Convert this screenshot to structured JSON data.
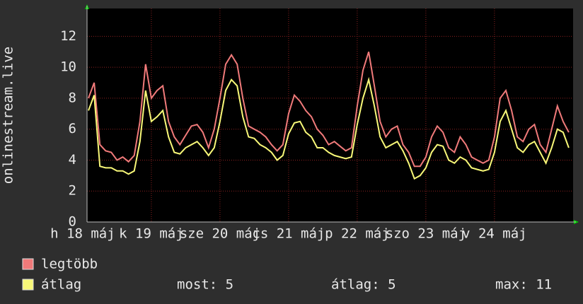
{
  "chart_data": {
    "type": "line",
    "ylabel": "onlinestream.live",
    "x": [
      2,
      4,
      6,
      8,
      10,
      12,
      14,
      16,
      18,
      20,
      22,
      24,
      26,
      28,
      30,
      32,
      34,
      36,
      38,
      40,
      42,
      44,
      46,
      48,
      50,
      52,
      54,
      56,
      58,
      60,
      62,
      64,
      66,
      68,
      70,
      72,
      74,
      76,
      78,
      80,
      82,
      84,
      86,
      88,
      90,
      92,
      94,
      96,
      98,
      100,
      102,
      104,
      106,
      108,
      110,
      112,
      114,
      116,
      118,
      120,
      122,
      124,
      126,
      128,
      130,
      132,
      134,
      136,
      138,
      140,
      142,
      144,
      146,
      148,
      150,
      152,
      154,
      156,
      158,
      160,
      162,
      164,
      166,
      168,
      170
    ],
    "series": [
      {
        "name": "legtöbb",
        "color": "#f07a7a",
        "values": [
          8.0,
          9.0,
          5.0,
          4.6,
          4.5,
          4.0,
          4.2,
          3.9,
          4.3,
          6.5,
          10.2,
          8.0,
          8.5,
          8.8,
          6.5,
          5.5,
          5.0,
          5.6,
          6.2,
          6.3,
          5.8,
          4.8,
          6.0,
          8.0,
          10.2,
          10.8,
          10.2,
          8.0,
          6.2,
          6.0,
          5.8,
          5.5,
          5.0,
          4.6,
          5.0,
          7.0,
          8.2,
          7.8,
          7.2,
          6.8,
          6.0,
          5.6,
          5.0,
          5.2,
          4.9,
          4.6,
          4.8,
          7.5,
          9.8,
          11.0,
          8.8,
          6.5,
          5.5,
          6.0,
          6.2,
          5.0,
          4.5,
          3.6,
          3.6,
          4.2,
          5.5,
          6.2,
          5.8,
          4.8,
          4.5,
          5.5,
          5.0,
          4.2,
          4.0,
          3.8,
          4.0,
          5.5,
          8.0,
          8.5,
          7.2,
          5.5,
          5.2,
          6.0,
          6.3,
          5.0,
          4.5,
          6.0,
          7.5,
          6.5,
          5.8
        ]
      },
      {
        "name": "átlag",
        "color": "#f8f878",
        "values": [
          7.2,
          8.2,
          3.6,
          3.5,
          3.5,
          3.3,
          3.3,
          3.1,
          3.3,
          5.2,
          8.5,
          6.5,
          6.8,
          7.2,
          5.5,
          4.5,
          4.4,
          4.8,
          5.0,
          5.2,
          4.8,
          4.3,
          4.8,
          6.5,
          8.5,
          9.2,
          8.8,
          6.8,
          5.5,
          5.4,
          5.0,
          4.8,
          4.5,
          4.0,
          4.3,
          5.7,
          6.4,
          6.5,
          5.8,
          5.5,
          4.8,
          4.8,
          4.5,
          4.3,
          4.2,
          4.1,
          4.2,
          6.3,
          8.0,
          9.2,
          7.5,
          5.5,
          4.8,
          5.0,
          5.2,
          4.6,
          3.8,
          2.8,
          3.0,
          3.5,
          4.5,
          5.0,
          4.9,
          4.0,
          3.8,
          4.2,
          4.0,
          3.5,
          3.4,
          3.3,
          3.4,
          4.5,
          6.5,
          7.2,
          6.0,
          4.8,
          4.5,
          5.0,
          5.2,
          4.5,
          3.8,
          4.8,
          6.0,
          5.8,
          4.8
        ]
      }
    ],
    "xlim": [
      1.5,
      171.5
    ],
    "xticks": [
      {
        "value": 0,
        "label": "h 18 máj"
      },
      {
        "value": 24,
        "label": "k 19 máj"
      },
      {
        "value": 48,
        "label": "sze 20 máj"
      },
      {
        "value": 72,
        "label": "cs 21 máj"
      },
      {
        "value": 96,
        "label": "p 22 máj"
      },
      {
        "value": 120,
        "label": "szo 23 máj"
      },
      {
        "value": 144,
        "label": "v 24 máj"
      }
    ],
    "ylim": [
      0,
      13.8
    ],
    "yticks": [
      0,
      2,
      4,
      6,
      8,
      10,
      12
    ],
    "grid": true,
    "stats": [
      "most: 5",
      "átlag: 5",
      "max: 11"
    ]
  }
}
